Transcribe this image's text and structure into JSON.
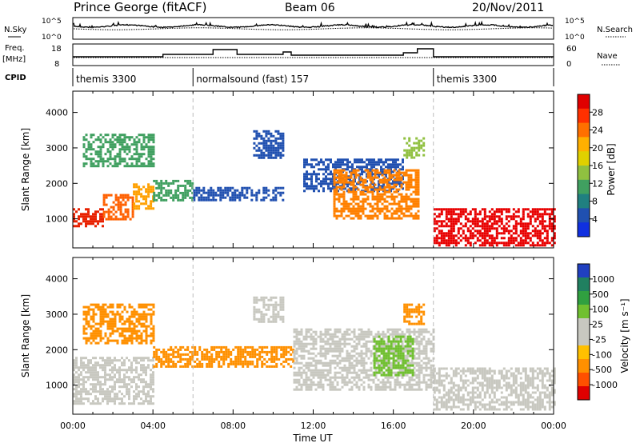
{
  "header": {
    "station": "Prince George (fitACF)",
    "beam": "Beam 06",
    "date": "20/Nov/2011"
  },
  "side_labels": {
    "nsky": "N.Sky",
    "nsearch": "N.Search",
    "freq_line1": "Freq.",
    "freq_line2": "[MHz]",
    "nave": "Nave",
    "cpid": "CPID",
    "nsky_top": "10^5",
    "nsky_bottom": "10^0",
    "nsearch_top": "10^5",
    "nsearch_bottom": "10^0",
    "freq_top": "18",
    "freq_bottom": "8",
    "nave_top": "60",
    "nave_bottom": "0"
  },
  "cpid_segments": [
    {
      "label": "themis 3300",
      "start": 0,
      "end": 6
    },
    {
      "label": "normalsound (fast) 157",
      "start": 6,
      "end": 18
    },
    {
      "label": "themis 3300",
      "start": 18,
      "end": 24
    }
  ],
  "chart_data": [
    {
      "type": "heatmap",
      "panel": "power",
      "ylabel": "Slant Range [km]",
      "xlim": [
        0,
        24
      ],
      "ylim": [
        180,
        4600
      ],
      "yticks": [
        1000,
        2000,
        3000,
        4000
      ],
      "colorbar": {
        "label": "Power [dB]",
        "ticks": [
          "28",
          "24",
          "20",
          "16",
          "12",
          "8",
          "4"
        ],
        "colors": [
          "#e00000",
          "#ff3000",
          "#ff7000",
          "#ffb000",
          "#e0d000",
          "#90c040",
          "#40a060",
          "#208080",
          "#2050b0",
          "#1030e0"
        ]
      },
      "regions": [
        {
          "t0": 0.0,
          "t1": 1.5,
          "r0": 800,
          "r1": 1300,
          "level": "#e82000"
        },
        {
          "t0": 1.5,
          "t1": 3.0,
          "r0": 1000,
          "r1": 1700,
          "level": "#ff6000"
        },
        {
          "t0": 3.0,
          "t1": 4.0,
          "r0": 1300,
          "r1": 2000,
          "level": "#ffa000"
        },
        {
          "t0": 0.5,
          "t1": 4.0,
          "r0": 2500,
          "r1": 3400,
          "level": "#40a060"
        },
        {
          "t0": 4.0,
          "t1": 6.0,
          "r0": 1500,
          "r1": 2100,
          "level": "#40a060"
        },
        {
          "t0": 6.0,
          "t1": 10.5,
          "r0": 1500,
          "r1": 1900,
          "level": "#2050b0"
        },
        {
          "t0": 9.0,
          "t1": 10.5,
          "r0": 2700,
          "r1": 3500,
          "level": "#2050b0"
        },
        {
          "t0": 11.5,
          "t1": 16.5,
          "r0": 1800,
          "r1": 2700,
          "level": "#2050b0"
        },
        {
          "t0": 13.0,
          "t1": 17.2,
          "r0": 1000,
          "r1": 2400,
          "level": "#ff8000"
        },
        {
          "t0": 16.5,
          "t1": 17.5,
          "r0": 2700,
          "r1": 3300,
          "level": "#90c040"
        },
        {
          "t0": 18.0,
          "t1": 24.0,
          "r0": 280,
          "r1": 1300,
          "level": "#e80000"
        }
      ]
    },
    {
      "type": "heatmap",
      "panel": "velocity",
      "ylabel": "Slant Range [km]",
      "xlabel": "Time UT",
      "xlim": [
        0,
        24
      ],
      "ylim": [
        180,
        4600
      ],
      "yticks": [
        1000,
        2000,
        3000,
        4000
      ],
      "xticks": [
        "00:00",
        "04:00",
        "08:00",
        "12:00",
        "16:00",
        "20:00",
        "00:00"
      ],
      "colorbar": {
        "label": "Velocity [m s⁻¹]",
        "ticks": [
          "1000",
          "500",
          "100",
          "25",
          "-25",
          "-100",
          "-500",
          "-1000"
        ],
        "colors": [
          "#2040c0",
          "#208060",
          "#30a040",
          "#70c030",
          "#c8c8c0",
          "#c8c8c0",
          "#ffc000",
          "#ff9000",
          "#ff5000",
          "#e00000"
        ]
      },
      "regions": [
        {
          "t0": 0.0,
          "t1": 4.0,
          "r0": 500,
          "r1": 1800,
          "level": "#c8c8c0"
        },
        {
          "t0": 0.5,
          "t1": 4.0,
          "r0": 2200,
          "r1": 3300,
          "level": "#ff9000"
        },
        {
          "t0": 4.0,
          "t1": 11.0,
          "r0": 1500,
          "r1": 2100,
          "level": "#ff9000"
        },
        {
          "t0": 9.0,
          "t1": 10.5,
          "r0": 2800,
          "r1": 3500,
          "level": "#c8c8c0"
        },
        {
          "t0": 11.0,
          "t1": 18.0,
          "r0": 900,
          "r1": 2600,
          "level": "#c8c8c0"
        },
        {
          "t0": 15.0,
          "t1": 17.0,
          "r0": 1300,
          "r1": 2400,
          "level": "#70c030"
        },
        {
          "t0": 16.5,
          "t1": 17.5,
          "r0": 2700,
          "r1": 3300,
          "level": "#ff9000"
        },
        {
          "t0": 18.0,
          "t1": 24.0,
          "r0": 300,
          "r1": 1500,
          "level": "#c8c8c0"
        }
      ]
    }
  ]
}
